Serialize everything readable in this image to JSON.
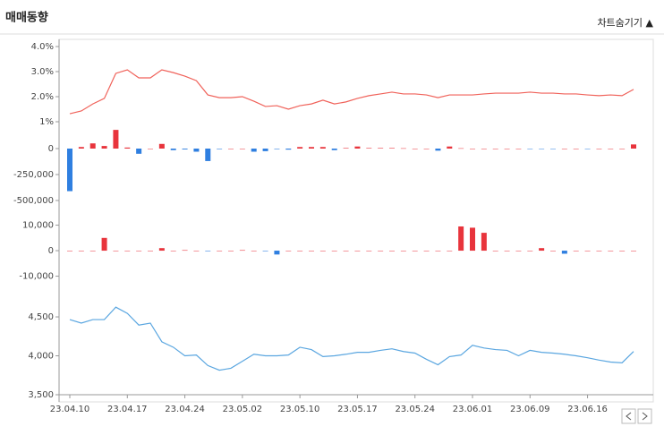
{
  "header": {
    "title": "매매동향",
    "toggle": "차트숨기기 ▲"
  },
  "chart_data": [
    {
      "type": "line",
      "color": "#f0625a",
      "ylim": [
        0.75,
        4.2
      ],
      "yticks": [
        {
          "value": 4,
          "label": "4.0%"
        },
        {
          "value": 3,
          "label": "3.0%"
        },
        {
          "value": 2,
          "label": "2.0%"
        },
        {
          "value": 1,
          "label": "1%"
        }
      ],
      "values": [
        1.32,
        1.43,
        1.71,
        1.93,
        2.93,
        3.07,
        2.75,
        2.75,
        3.07,
        2.96,
        2.82,
        2.64,
        2.07,
        1.96,
        1.96,
        2.0,
        1.82,
        1.61,
        1.64,
        1.5,
        1.64,
        1.71,
        1.86,
        1.71,
        1.79,
        1.93,
        2.04,
        2.11,
        2.18,
        2.11,
        2.11,
        2.07,
        1.96,
        2.07,
        2.07,
        2.07,
        2.11,
        2.14,
        2.14,
        2.14,
        2.18,
        2.14,
        2.14,
        2.11,
        2.11,
        2.07,
        2.04,
        2.07,
        2.04,
        2.29
      ]
    },
    {
      "type": "bar",
      "positive_color": "#e8343c",
      "negative_color": "#2f7fe0",
      "ylim": [
        -600000,
        200000
      ],
      "yticks": [
        0,
        {
          "value": -250000,
          "label": "-250,000"
        },
        {
          "value": -500000,
          "label": "-500,000"
        }
      ],
      "values": [
        -410000,
        15000,
        50000,
        25000,
        180000,
        10000,
        -50000,
        0,
        45000,
        -15000,
        -8000,
        -30000,
        -120000,
        -5000,
        0,
        0,
        -30000,
        -25000,
        -5000,
        -10000,
        15000,
        15000,
        15000,
        -15000,
        5000,
        20000,
        5000,
        5000,
        5000,
        3000,
        0,
        0,
        -20000,
        20000,
        3000,
        0,
        0,
        0,
        0,
        0,
        -3000,
        -3000,
        -3000,
        0,
        0,
        -3000,
        0,
        0,
        0,
        40000
      ]
    },
    {
      "type": "bar",
      "positive_color": "#e8343c",
      "negative_color": "#2f7fe0",
      "ylim": [
        -15000,
        15000
      ],
      "yticks": [
        {
          "value": 10000,
          "label": "10,000"
        },
        0,
        {
          "value": -10000,
          "label": "-10,000"
        }
      ],
      "values": [
        0,
        0,
        0,
        5000,
        0,
        0,
        0,
        0,
        1000,
        0,
        200,
        0,
        -200,
        0,
        0,
        200,
        0,
        -200,
        -1500,
        0,
        0,
        0,
        0,
        0,
        0,
        0,
        0,
        0,
        0,
        0,
        0,
        0,
        0,
        0,
        9500,
        9000,
        7000,
        0,
        0,
        0,
        0,
        1000,
        0,
        -1200,
        0,
        0,
        0,
        0,
        0,
        0
      ]
    },
    {
      "type": "line",
      "color": "#5aa6e0",
      "ylim": [
        3500,
        4750
      ],
      "yticks": [
        {
          "value": 4500,
          "label": "4,500"
        },
        {
          "value": 4000,
          "label": "4,000"
        },
        {
          "value": 3500,
          "label": "3,500"
        }
      ],
      "categories": [
        "23.04.10",
        null,
        null,
        null,
        null,
        "23.04.17",
        null,
        null,
        null,
        null,
        "23.04.24",
        null,
        null,
        null,
        null,
        "23.05.02",
        null,
        null,
        null,
        null,
        "23.05.10",
        null,
        null,
        null,
        null,
        "23.05.17",
        null,
        null,
        null,
        null,
        "23.05.24",
        null,
        null,
        null,
        null,
        "23.06.01",
        null,
        null,
        null,
        null,
        "23.06.09",
        null,
        null,
        null,
        null,
        "23.06.16",
        null,
        null,
        null,
        null
      ],
      "values": [
        4465,
        4420,
        4465,
        4465,
        4625,
        4545,
        4395,
        4420,
        4180,
        4110,
        4000,
        4010,
        3875,
        3815,
        3840,
        3930,
        4020,
        4000,
        4000,
        4010,
        4110,
        4080,
        3990,
        4000,
        4020,
        4045,
        4045,
        4070,
        4090,
        4055,
        4035,
        3955,
        3885,
        3990,
        4010,
        4135,
        4100,
        4080,
        4070,
        4000,
        4070,
        4045,
        4035,
        4020,
        4000,
        3975,
        3945,
        3920,
        3910,
        4055
      ]
    }
  ]
}
